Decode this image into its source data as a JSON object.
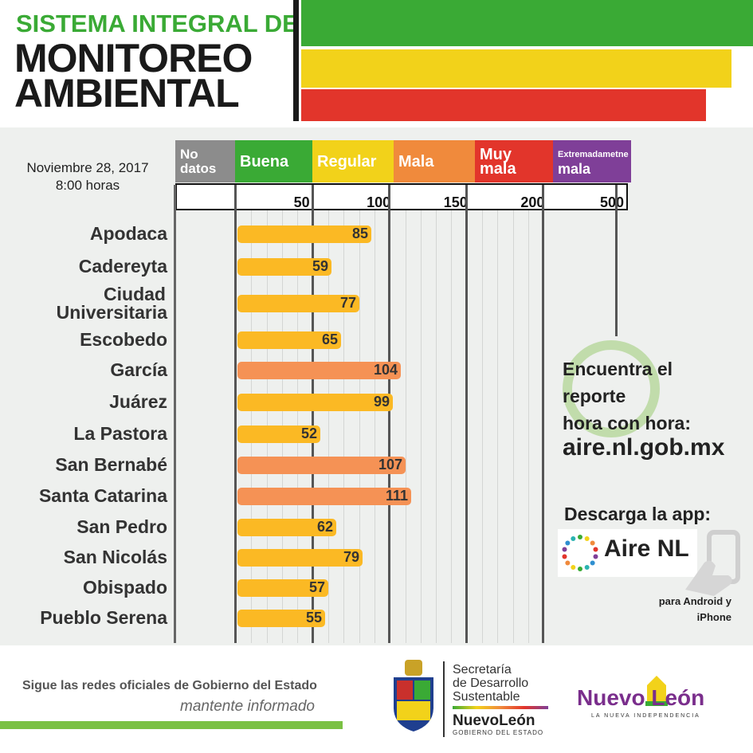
{
  "title": {
    "line1": "SISTEMA INTEGRAL DE",
    "line2": "MONITOREO",
    "line3": "AMBIENTAL"
  },
  "colors": {
    "green": "#3aaa35",
    "yellow": "#f2d21a",
    "red": "#e2352b",
    "orange": "#f08a3c",
    "purple": "#7f3f98",
    "gray": "#8c8c8c",
    "bar_yellow": "#fbb924",
    "bar_orange": "#f59255"
  },
  "date": {
    "line1": "Noviembre 28, 2017",
    "line2": "8:00 horas"
  },
  "categories": [
    {
      "line1": "No",
      "line2": "datos",
      "color": "#8c8c8c",
      "size": 17
    },
    {
      "line1": "Buena",
      "line2": "",
      "color": "#3aaa35",
      "size": 20
    },
    {
      "line1": "Regular",
      "line2": "",
      "color": "#f2d21a",
      "size": 20
    },
    {
      "line1": "Mala",
      "line2": "",
      "color": "#f08a3c",
      "size": 20
    },
    {
      "line1": "Muy",
      "line2": "mala",
      "color": "#e2352b",
      "size": 20
    },
    {
      "line1": "Extremadametne",
      "line2": "mala",
      "color": "#7f3f98",
      "size": 11
    }
  ],
  "chart_data": {
    "type": "bar",
    "orientation": "horizontal",
    "scale_ticks": [
      "50",
      "100",
      "150",
      "200",
      "500"
    ],
    "categories": [
      "Apodaca",
      "Cadereyta",
      "Ciudad Universitaria",
      "Escobedo",
      "García",
      "Juárez",
      "La Pastora",
      "San Bernabé",
      "Santa Catarina",
      "San Pedro",
      "San Nicolás",
      "Obispado",
      "Pueblo Serena"
    ],
    "values": [
      85,
      59,
      77,
      65,
      104,
      99,
      52,
      107,
      111,
      62,
      79,
      57,
      55
    ],
    "bar_levels": [
      "Regular",
      "Regular",
      "Regular",
      "Regular",
      "Mala",
      "Regular",
      "Regular",
      "Mala",
      "Mala",
      "Regular",
      "Regular",
      "Regular",
      "Regular"
    ],
    "grid": true
  },
  "report": {
    "line1": "Encuentra el",
    "line2": "reporte",
    "line3": "hora con hora:",
    "url": "aire.nl.gob.mx"
  },
  "app": {
    "download": "Descarga la app:",
    "name": "Aire NL",
    "platforms_line1": "para Android y",
    "platforms_line2": "iPhone"
  },
  "footer": {
    "follow": "Sigue las redes oficiales de Gobierno del Estado",
    "informed": "mantente informado",
    "secretaria_line1": "Secretaría",
    "secretaria_line2": "de Desarrollo",
    "secretaria_line3": "Sustentable",
    "state_name": "NuevoLeón",
    "state_gov": "GOBIERNO DEL ESTADO",
    "brand": "Nuevo León",
    "brand_tagline": "LA NUEVA INDEPENDENCIA"
  }
}
